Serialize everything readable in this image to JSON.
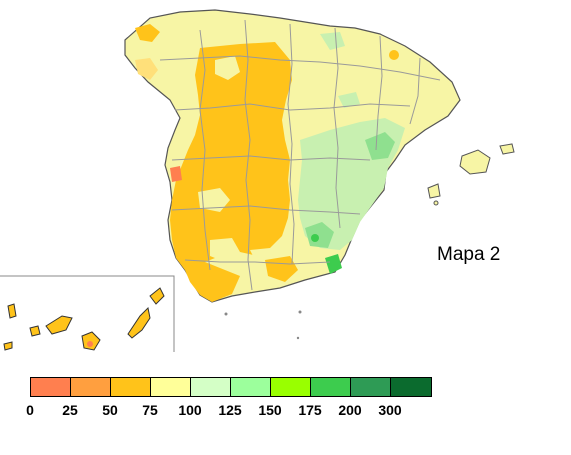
{
  "map": {
    "title": "Mapa 2",
    "region": "Spain",
    "inset": "Canary Islands"
  },
  "legend": {
    "labels": [
      "0",
      "25",
      "50",
      "75",
      "100",
      "125",
      "150",
      "175",
      "200",
      "300"
    ],
    "colors": [
      "#ff7f4f",
      "#ff9f3f",
      "#ffc31a",
      "#ffff99",
      "#d4ffc6",
      "#9cff9c",
      "#99ff00",
      "#3dcc4e",
      "#2e9b55",
      "#0b6b2e"
    ]
  },
  "colors": {
    "border": "#9a9a9a",
    "coast": "#6a6a6a",
    "yellow": "#f7f5a5",
    "orange": "#ffc31a",
    "green_light": "#c8f0b0",
    "green_mid": "#8fe08f"
  }
}
